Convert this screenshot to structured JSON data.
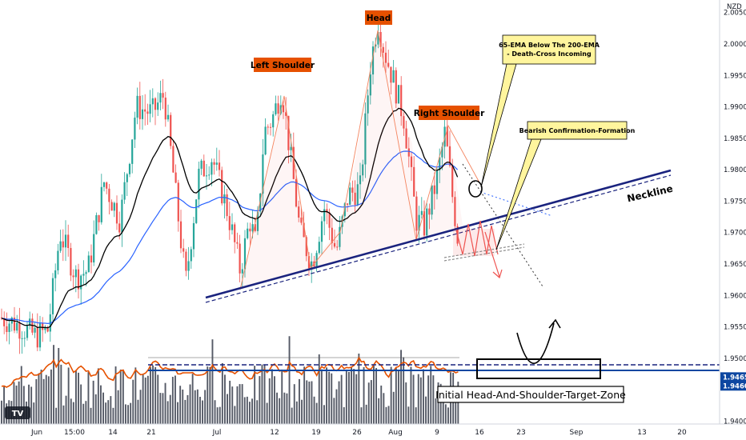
{
  "chart_data": {
    "type": "candlestick",
    "currency": "NZD",
    "y_axis": {
      "range": [
        1.937,
        2.007
      ],
      "ticks": [
        "2.00500",
        "2.00000",
        "1.99500",
        "1.99000",
        "1.98500",
        "1.98000",
        "1.97500",
        "1.97000",
        "1.96500",
        "1.96000",
        "1.95500",
        "1.95000",
        "1.94000"
      ],
      "markers": [
        {
          "label": "1.94650",
          "value": 1.9465,
          "color": "#0d47a1"
        },
        {
          "label": "1.94600",
          "value": 1.946,
          "color": "#0d47a1"
        }
      ]
    },
    "x_axis": {
      "ticks": [
        "Jun",
        "15:00",
        "14",
        "21",
        "Jul",
        "12",
        "19",
        "26",
        "Aug",
        "9",
        "16",
        "23",
        "Sep",
        "13",
        "20"
      ]
    },
    "annotations": {
      "head": "Head",
      "left_shoulder": "Left Shoulder",
      "right_shoulder": "Right Shoulder",
      "neckline": "Neckline",
      "callout_ema_line1": "65-EMA Below The 200-EMA",
      "callout_ema_line2": "- Death-Cross Incoming",
      "callout_bearish": "Bearish Confirmation-Formation",
      "target_zone": "Initial Head-And-Shoulder-Target-Zone"
    },
    "colors": {
      "up": "#26a69a",
      "down": "#ef5350",
      "ema65": "#000000",
      "ema200": "#2962ff",
      "volume": "#555a66",
      "volume_ma": "#e65100",
      "neckline": "#1a237e",
      "label_bg": "#e65100",
      "callout_bg": "#fff59d"
    }
  }
}
